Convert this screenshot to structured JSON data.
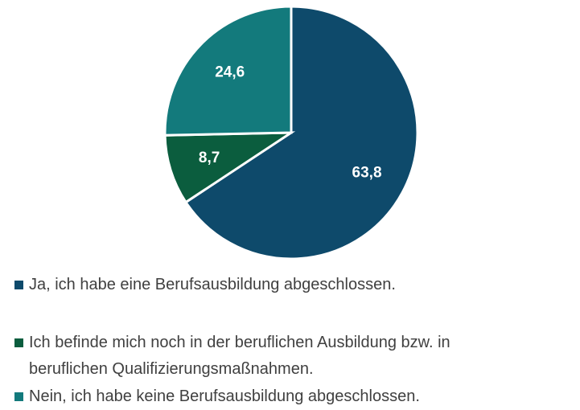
{
  "chart_data": {
    "type": "pie",
    "categories": [
      "Ja, ich habe eine Berufsausbildung abgeschlossen.",
      "Ich befinde mich noch in der beruflichen Ausbildung bzw. in beruflichen Qualifizierungsmaßnahmen.",
      "Nein,  ich habe keine Berufsausbildung abgeschlossen."
    ],
    "values": [
      63.8,
      8.7,
      24.6
    ],
    "value_labels": [
      "63,8",
      "8,7",
      "24,6"
    ],
    "colors": [
      "#0e4a6b",
      "#0b5d3e",
      "#137a7c"
    ]
  }
}
